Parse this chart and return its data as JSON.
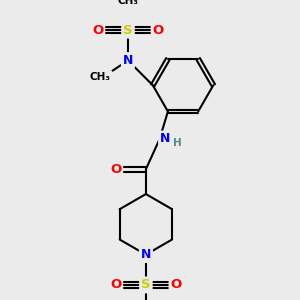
{
  "bg_color": "#ebebeb",
  "atom_colors": {
    "C": "#000000",
    "N": "#0000ff",
    "O": "#ff0000",
    "S": "#cccc00",
    "H": "#4a9090"
  },
  "bond_color": "#000000",
  "bond_width": 1.5,
  "dbo": 0.04
}
